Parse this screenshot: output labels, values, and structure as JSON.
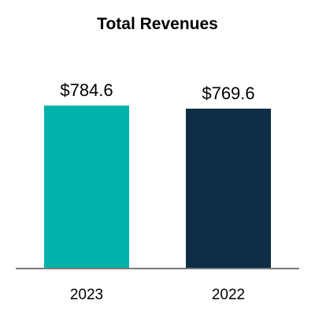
{
  "chart_data": {
    "type": "bar",
    "title": "Total Revenues",
    "categories": [
      "2023",
      "2022"
    ],
    "values": [
      784.6,
      769.6
    ],
    "value_labels": [
      "$784.6",
      "$769.6"
    ],
    "colors": [
      "#00b2a9",
      "#0d2e45"
    ],
    "xlabel": "",
    "ylabel": "",
    "ylim": [
      0,
      1000
    ],
    "grid": false,
    "legend": "none",
    "axis_color": "#7a7a7a"
  }
}
